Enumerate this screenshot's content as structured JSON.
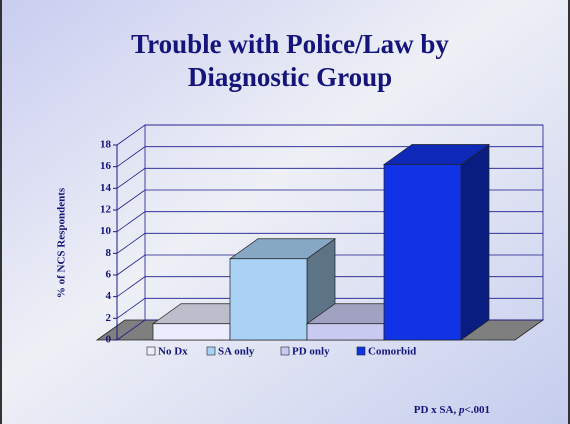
{
  "chart_data": {
    "type": "bar3d",
    "title": [
      "Trouble with Police/Law by",
      "Diagnostic Group"
    ],
    "y_label": "% of NCS Respondents",
    "categories": [
      "No Dx",
      "SA only",
      "PD only",
      "Comorbid"
    ],
    "values": [
      1.5,
      7.5,
      1.5,
      16.2
    ],
    "colors": [
      "#ececff",
      "#a9d2f5",
      "#c9caf2",
      "#1133e6"
    ],
    "ylim": [
      0,
      18
    ],
    "yticks": [
      0,
      2,
      4,
      6,
      8,
      10,
      12,
      14,
      16,
      18
    ],
    "grid": true,
    "legend": "bottom",
    "annotation": {
      "prefix": "PD x SA, ",
      "italic": "p",
      "suffix": "<.001"
    }
  }
}
